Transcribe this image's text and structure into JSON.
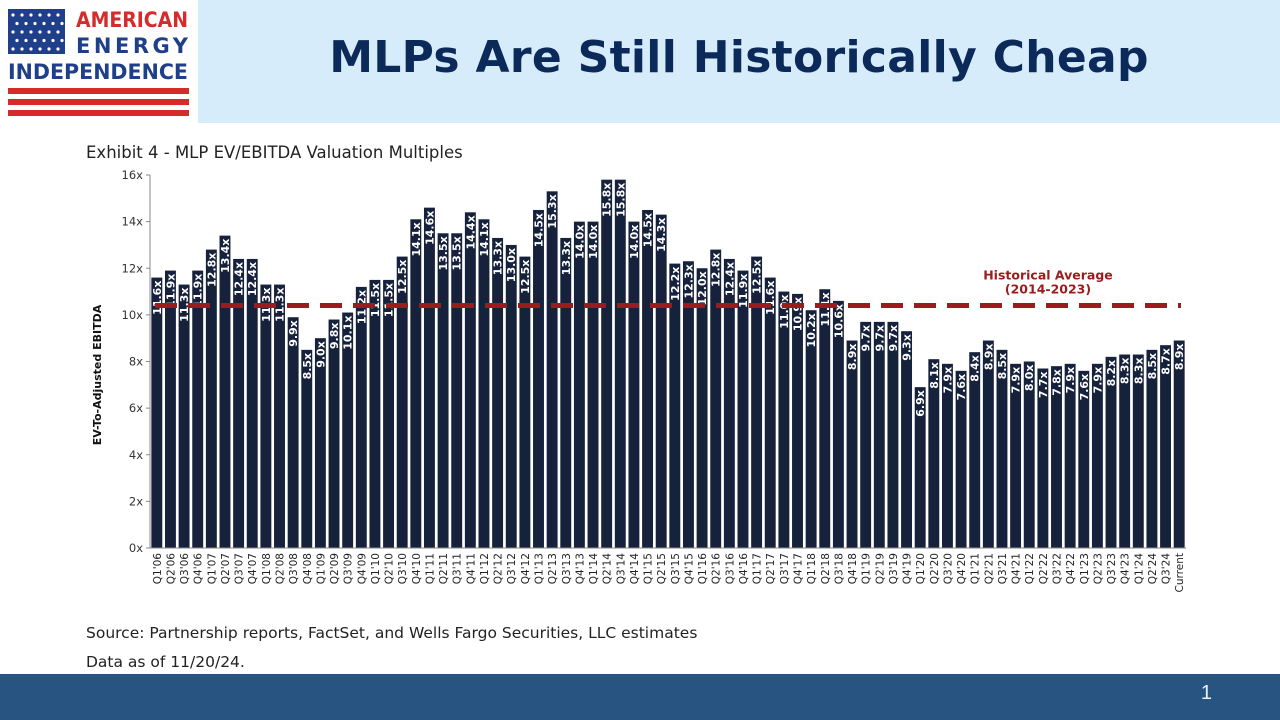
{
  "header": {
    "title": "MLPs Are Still Historically Cheap",
    "logo": {
      "line1": "AMERICAN",
      "line2": "ENERGY",
      "line3": "INDEPENDENCE",
      "colors": {
        "blue": "#1f3f8a",
        "red": "#d52b2b"
      }
    }
  },
  "exhibit_title": "Exhibit 4 - MLP EV/EBITDA Valuation Multiples",
  "source_note": "Source: Partnership reports, FactSet, and Wells Fargo Securities, LLC estimates",
  "date_note": "Data as of 11/20/24.",
  "page_number": "1",
  "colors": {
    "bar": "#16213b",
    "average_line": "#9b1c1c",
    "title": "#0b2a5a",
    "title_band": "#d7ecfb",
    "footer": "#285482"
  },
  "chart_data": {
    "type": "bar",
    "ylabel": "EV-To-Adjusted EBITDA",
    "ylim": [
      0,
      16
    ],
    "yticks": [
      "0x",
      "2x",
      "4x",
      "6x",
      "8x",
      "10x",
      "12x",
      "14x",
      "16x"
    ],
    "categories": [
      "Q1'06",
      "Q2'06",
      "Q3'06",
      "Q4'06",
      "Q1'07",
      "Q2'07",
      "Q3'07",
      "Q4'07",
      "Q1'08",
      "Q2'08",
      "Q3'08",
      "Q4'08",
      "Q1'09",
      "Q2'09",
      "Q3'09",
      "Q4'09",
      "Q1'10",
      "Q2'10",
      "Q3'10",
      "Q4'10",
      "Q1'11",
      "Q2'11",
      "Q3'11",
      "Q4'11",
      "Q1'12",
      "Q2'12",
      "Q3'12",
      "Q4'12",
      "Q1'13",
      "Q2'13",
      "Q3'13",
      "Q4'13",
      "Q1'14",
      "Q2'14",
      "Q3'14",
      "Q4'14",
      "Q1'15",
      "Q2'15",
      "Q3'15",
      "Q4'15",
      "Q1'16",
      "Q2'16",
      "Q3'16",
      "Q4'16",
      "Q1'17",
      "Q2'17",
      "Q3'17",
      "Q4'17",
      "Q1'18",
      "Q2'18",
      "Q3'18",
      "Q4'18",
      "Q1'19",
      "Q2'19",
      "Q3'19",
      "Q4'19",
      "Q1'20",
      "Q2'20",
      "Q3'20",
      "Q4'20",
      "Q1'21",
      "Q2'21",
      "Q3'21",
      "Q4'21",
      "Q1'22",
      "Q2'22",
      "Q3'22",
      "Q4'22",
      "Q1'23",
      "Q2'23",
      "Q3'23",
      "Q4'23",
      "Q1'24",
      "Q2'24",
      "Q3'24",
      "Current"
    ],
    "values": [
      11.6,
      11.9,
      11.3,
      11.9,
      12.8,
      13.4,
      12.4,
      12.4,
      11.3,
      11.3,
      9.9,
      8.5,
      9.0,
      9.8,
      10.1,
      11.2,
      11.5,
      11.5,
      12.5,
      14.1,
      14.6,
      13.5,
      13.5,
      14.4,
      14.1,
      13.3,
      13.0,
      12.5,
      14.5,
      15.3,
      13.3,
      14.0,
      14.0,
      15.8,
      15.8,
      14.0,
      14.5,
      14.3,
      12.2,
      12.3,
      12.0,
      12.8,
      12.4,
      11.9,
      12.5,
      11.6,
      11.0,
      10.9,
      10.2,
      11.1,
      10.6,
      8.9,
      9.7,
      9.7,
      9.7,
      9.3,
      6.9,
      8.1,
      7.9,
      7.6,
      8.4,
      8.9,
      8.5,
      7.9,
      8.0,
      7.7,
      7.8,
      7.9,
      7.6,
      7.9,
      8.2,
      8.3,
      8.3,
      8.5,
      8.7,
      8.9
    ],
    "bar_labels": [
      "11.6x",
      "11.9x",
      "11.3x",
      "11.9x",
      "12.8x",
      "13.4x",
      "12.4x",
      "12.4x",
      "11.3x",
      "11.3x",
      "9.9x",
      "8.5x",
      "9.0x",
      "9.8x",
      "10.1x",
      "11.2x",
      "11.5x",
      "11.5x",
      "12.5x",
      "14.1x",
      "14.6x",
      "13.5x",
      "13.5x",
      "14.4x",
      "14.1x",
      "13.3x",
      "13.0x",
      "12.5x",
      "14.5x",
      "15.3x",
      "13.3x",
      "14.0x",
      "14.0x",
      "15.8x",
      "15.8x",
      "14.0x",
      "14.5x",
      "14.3x",
      "12.2x",
      "12.3x",
      "12.0x",
      "12.8x",
      "12.4x",
      "11.9x",
      "12.5x",
      "11.6x",
      "11.0x",
      "10.9x",
      "10.2x",
      "11.1x",
      "10.6x",
      "8.9x",
      "9.7x",
      "9.7x",
      "9.7x",
      "9.3x",
      "6.9x",
      "8.1x",
      "7.9x",
      "7.6x",
      "8.4x",
      "8.9x",
      "8.5x",
      "7.9x",
      "8.0x",
      "7.7x",
      "7.8x",
      "7.9x",
      "7.6x",
      "7.9x",
      "8.2x",
      "8.3x",
      "8.3x",
      "8.5x",
      "8.7x",
      "8.9x"
    ],
    "average_line": {
      "value": 10.4,
      "label_line1": "Historical Average",
      "label_line2": "(2014-2023)"
    },
    "grid": false,
    "legend": "none"
  }
}
